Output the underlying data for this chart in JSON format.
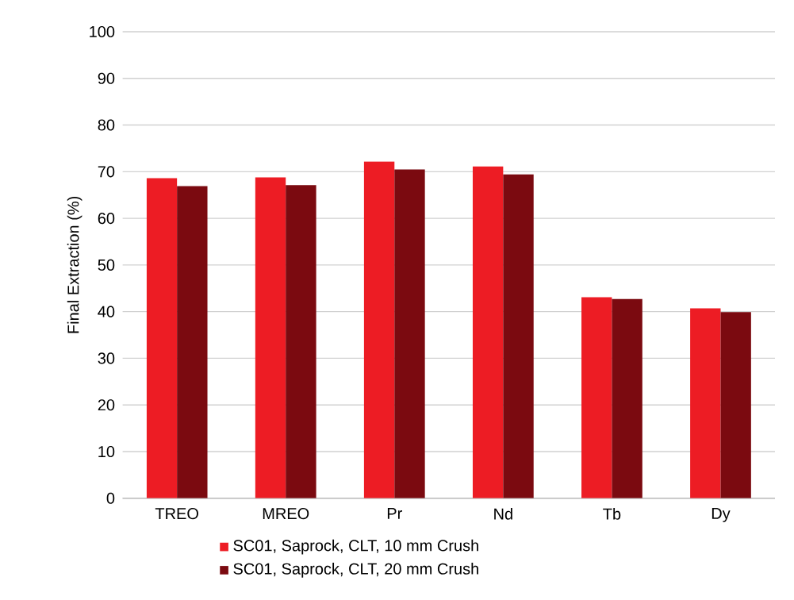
{
  "chart_data": {
    "type": "bar",
    "ylabel": "Final Extraction (%)",
    "categories": [
      "TREO",
      "MREO",
      "Pr",
      "Nd",
      "Tb",
      "Dy"
    ],
    "series": [
      {
        "name": "SC01, Saprock, CLT, 10 mm Crush",
        "color": "#ed1c24",
        "values": [
          68.6,
          68.8,
          72.2,
          71.1,
          43.1,
          40.7
        ]
      },
      {
        "name": "SC01, Saprock, CLT, 20 mm Crush",
        "color": "#7b0a10",
        "values": [
          66.9,
          67.1,
          70.5,
          69.4,
          42.7,
          39.9
        ]
      }
    ],
    "ylim": [
      0,
      100
    ],
    "yticks": [
      0,
      10,
      20,
      30,
      40,
      50,
      60,
      70,
      80,
      90,
      100
    ],
    "grid": "y",
    "legend": "bottom"
  }
}
